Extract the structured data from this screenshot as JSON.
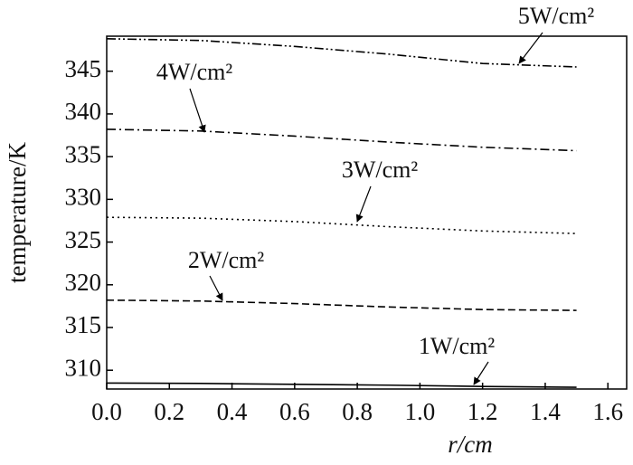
{
  "chart_data": {
    "type": "line",
    "xlabel": "r/cm",
    "ylabel": "temperature/K",
    "x": [
      0,
      0.3,
      0.6,
      0.9,
      1.2,
      1.5
    ],
    "series": [
      {
        "name": "1W/cm²",
        "color": "#000000",
        "style": "solid",
        "values": [
          308.5,
          308.45,
          308.35,
          308.25,
          308.1,
          308.0
        ]
      },
      {
        "name": "2W/cm²",
        "color": "#000000",
        "style": "dashed",
        "values": [
          318.2,
          318.1,
          317.8,
          317.4,
          317.1,
          317.0
        ]
      },
      {
        "name": "3W/cm²",
        "color": "#000000",
        "style": "dotted",
        "values": [
          327.9,
          327.8,
          327.4,
          326.8,
          326.3,
          326.0
        ]
      },
      {
        "name": "4W/cm²",
        "color": "#000000",
        "style": "dashdot",
        "values": [
          338.2,
          338.0,
          337.4,
          336.7,
          336.1,
          335.7
        ]
      },
      {
        "name": "5W/cm²",
        "color": "#000000",
        "style": "dashdotdot",
        "values": [
          348.8,
          348.6,
          347.9,
          347.0,
          345.9,
          345.5
        ]
      }
    ],
    "xlim": [
      0,
      1.66
    ],
    "xticks": [
      {
        "value": 0,
        "label": "0.0"
      },
      {
        "value": 0.2,
        "label": "0.2"
      },
      {
        "value": 0.4,
        "label": "0.4"
      },
      {
        "value": 0.6,
        "label": "0.6"
      },
      {
        "value": 0.8,
        "label": "0.8"
      },
      {
        "value": 1.0,
        "label": "1.0"
      },
      {
        "value": 1.2,
        "label": "1.2"
      },
      {
        "value": 1.4,
        "label": "1.4"
      },
      {
        "value": 1.6,
        "label": "1.6"
      }
    ],
    "ylim": [
      307.8,
      349.1
    ],
    "yticks": [
      310,
      315,
      320,
      325,
      330,
      335,
      340,
      345
    ],
    "grid": false
  }
}
